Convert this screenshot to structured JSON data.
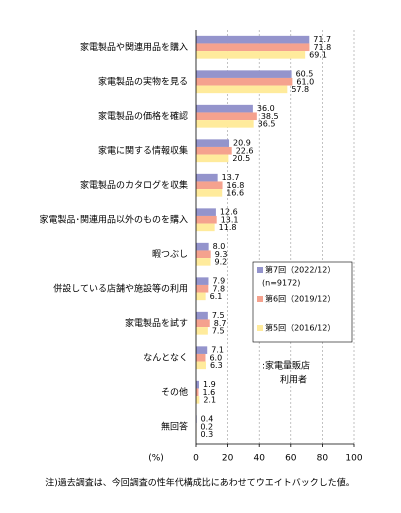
{
  "chart_data": {
    "type": "hbar",
    "categories": [
      "家電製品や関連用品を購入",
      "家電製品の実物を見る",
      "家電製品の価格を確認",
      "家電に関する情報収集",
      "家電製品のカタログを収集",
      "家電製品･関連用品以外のものを購入",
      "暇つぶし",
      "併設している店舗や施設等の利用",
      "家電製品を試す",
      "なんとなく",
      "その他",
      "無回答"
    ],
    "series": [
      {
        "name": "第7回（2022/12）",
        "note": "(n=9172)",
        "color": "#9494cc",
        "values": [
          71.7,
          60.5,
          36.0,
          20.9,
          13.7,
          12.6,
          8.0,
          7.9,
          7.5,
          7.1,
          1.9,
          0.4
        ],
        "value_labels": [
          "71.7",
          "60.5",
          "36.0",
          "20.9",
          "13.7",
          "12.6",
          "8.0",
          "7.9",
          "7.5",
          "7.1",
          "1.9",
          "0.4"
        ]
      },
      {
        "name": "第6回（2019/12）",
        "color": "#f5a28e",
        "values": [
          71.8,
          61.0,
          38.5,
          22.6,
          16.8,
          13.1,
          9.3,
          7.8,
          8.7,
          6.0,
          1.6,
          0.2
        ],
        "value_labels": [
          "71.8",
          "61.0",
          "38.5",
          "22.6",
          "16.8",
          "13.1",
          "9.3",
          "7.8",
          "8.7",
          "6.0",
          "1.6",
          "0.2"
        ]
      },
      {
        "name": "第5回（2016/12）",
        "color": "#ffeb9c",
        "values": [
          69.1,
          57.8,
          36.5,
          20.5,
          16.6,
          11.8,
          9.2,
          6.1,
          7.5,
          6.3,
          2.1,
          0.3
        ],
        "value_labels": [
          "69.1",
          "57.8",
          "36.5",
          "20.5",
          "16.6",
          "11.8",
          "9.2",
          "6.1",
          "7.5",
          "6.3",
          "2.1",
          "0.3"
        ]
      }
    ],
    "xlim": [
      0,
      100
    ],
    "xticks": [
      0,
      20,
      40,
      60,
      80,
      100
    ],
    "grid": true,
    "x_label": "(%)",
    "annotation": [
      ":家電量販店",
      "利用者"
    ],
    "footnote": "注)過去調査は、今回調査の性年代構成比にあわせてウエイトバックした値。"
  }
}
